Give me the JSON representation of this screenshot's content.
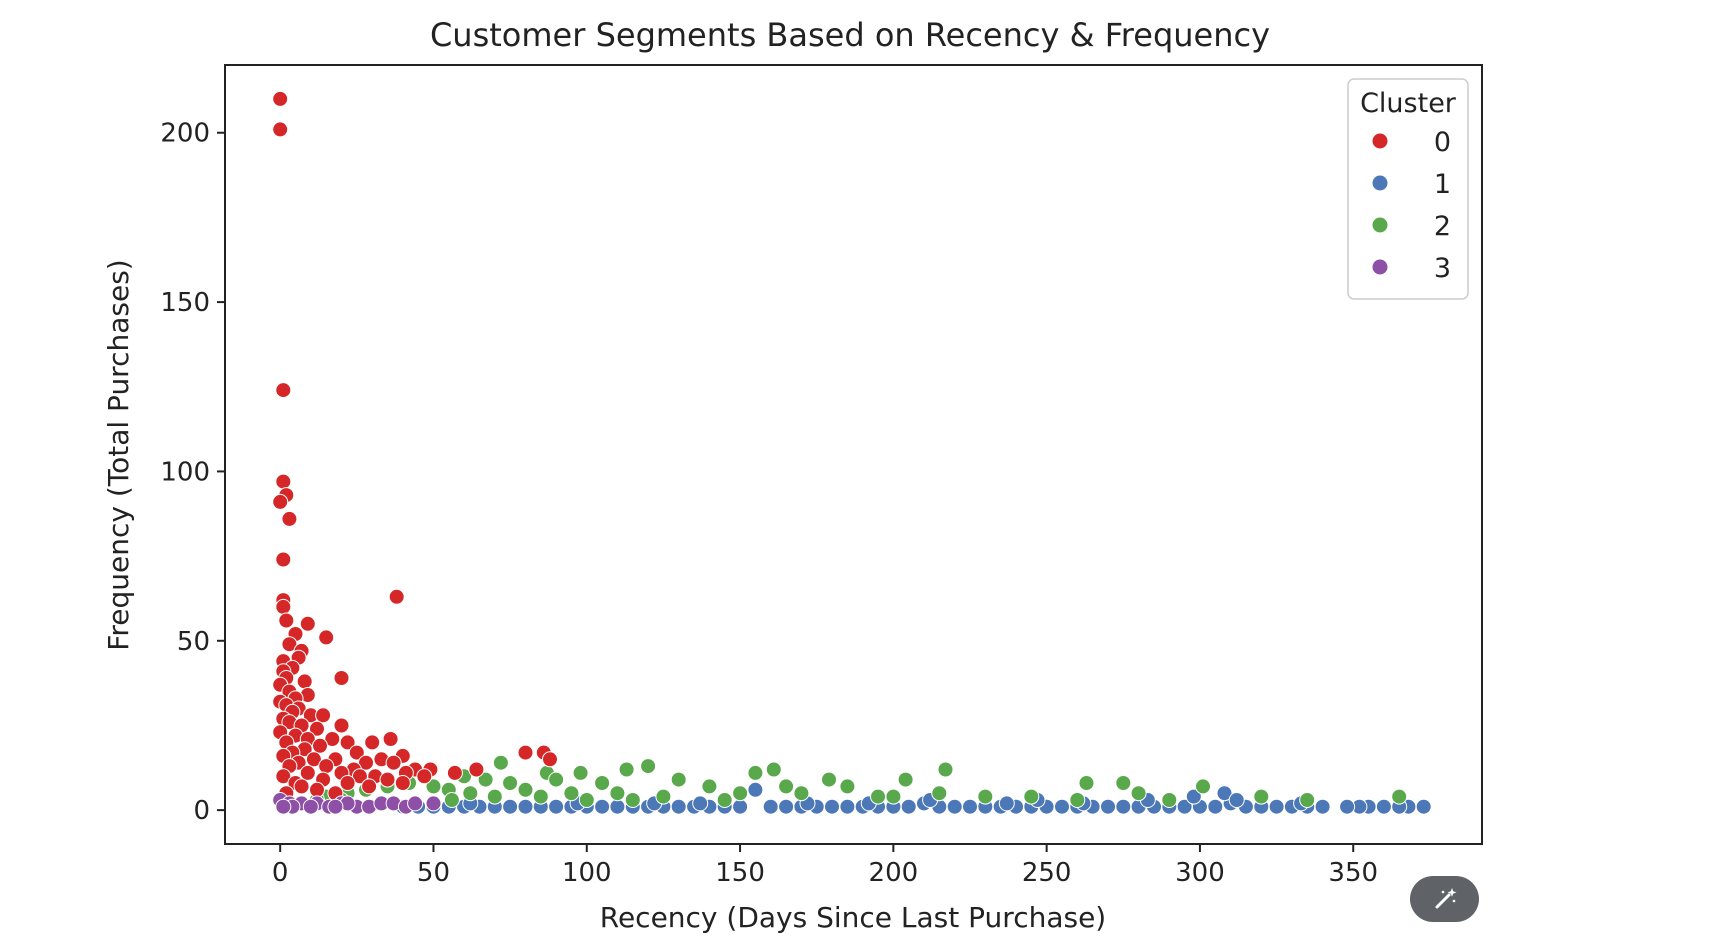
{
  "chart_data": {
    "type": "scatter",
    "title": "Customer Segments Based on Recency & Frequency",
    "xlabel": "Recency (Days Since Last Purchase)",
    "ylabel": "Frequency (Total Purchases)",
    "xlim": [
      -18,
      392
    ],
    "ylim": [
      -10,
      220
    ],
    "xticks": [
      0,
      50,
      100,
      150,
      200,
      250,
      300,
      350
    ],
    "yticks": [
      0,
      50,
      100,
      150,
      200
    ],
    "grid": false,
    "legend": {
      "title": "Cluster",
      "position": "top-right"
    },
    "colors": {
      "0": "#d62728",
      "1": "#4c78b8",
      "2": "#59a84b",
      "3": "#8e4fa6"
    },
    "series": [
      {
        "name": "0",
        "points": [
          [
            0,
            210
          ],
          [
            0,
            201
          ],
          [
            1,
            124
          ],
          [
            1,
            97
          ],
          [
            2,
            93
          ],
          [
            0,
            91
          ],
          [
            3,
            86
          ],
          [
            1,
            74
          ],
          [
            38,
            63
          ],
          [
            1,
            62
          ],
          [
            1,
            60
          ],
          [
            2,
            56
          ],
          [
            9,
            55
          ],
          [
            5,
            52
          ],
          [
            15,
            51
          ],
          [
            3,
            49
          ],
          [
            7,
            47
          ],
          [
            6,
            45
          ],
          [
            1,
            44
          ],
          [
            4,
            42
          ],
          [
            1,
            41
          ],
          [
            2,
            39
          ],
          [
            20,
            39
          ],
          [
            8,
            38
          ],
          [
            0,
            37
          ],
          [
            3,
            35
          ],
          [
            9,
            34
          ],
          [
            5,
            33
          ],
          [
            0,
            32
          ],
          [
            2,
            31
          ],
          [
            6,
            30
          ],
          [
            4,
            29
          ],
          [
            10,
            28
          ],
          [
            14,
            28
          ],
          [
            1,
            27
          ],
          [
            3,
            26
          ],
          [
            7,
            25
          ],
          [
            20,
            25
          ],
          [
            12,
            24
          ],
          [
            0,
            23
          ],
          [
            5,
            22
          ],
          [
            9,
            21
          ],
          [
            36,
            21
          ],
          [
            17,
            21
          ],
          [
            2,
            20
          ],
          [
            30,
            20
          ],
          [
            22,
            20
          ],
          [
            13,
            19
          ],
          [
            8,
            18
          ],
          [
            4,
            17
          ],
          [
            25,
            17
          ],
          [
            40,
            16
          ],
          [
            1,
            16
          ],
          [
            18,
            15
          ],
          [
            11,
            15
          ],
          [
            33,
            15
          ],
          [
            6,
            14
          ],
          [
            28,
            14
          ],
          [
            37,
            14
          ],
          [
            3,
            13
          ],
          [
            15,
            13
          ],
          [
            24,
            12
          ],
          [
            44,
            12
          ],
          [
            49,
            12
          ],
          [
            9,
            11
          ],
          [
            20,
            11
          ],
          [
            41,
            11
          ],
          [
            1,
            10
          ],
          [
            31,
            10
          ],
          [
            26,
            10
          ],
          [
            47,
            10
          ],
          [
            14,
            9
          ],
          [
            35,
            9
          ],
          [
            5,
            8
          ],
          [
            57,
            11
          ],
          [
            64,
            12
          ],
          [
            22,
            8
          ],
          [
            7,
            7
          ],
          [
            40,
            8
          ],
          [
            80,
            17
          ],
          [
            86,
            17
          ],
          [
            88,
            15
          ],
          [
            29,
            7
          ],
          [
            12,
            6
          ],
          [
            2,
            5
          ],
          [
            18,
            5
          ]
        ]
      },
      {
        "name": "1",
        "points": [
          [
            373,
            1
          ],
          [
            368,
            1
          ],
          [
            365,
            1
          ],
          [
            360,
            1
          ],
          [
            355,
            1
          ],
          [
            352,
            1
          ],
          [
            348,
            1
          ],
          [
            340,
            1
          ],
          [
            335,
            1
          ],
          [
            330,
            1
          ],
          [
            325,
            1
          ],
          [
            320,
            1
          ],
          [
            315,
            1
          ],
          [
            310,
            2
          ],
          [
            305,
            1
          ],
          [
            300,
            1
          ],
          [
            295,
            1
          ],
          [
            290,
            1
          ],
          [
            285,
            1
          ],
          [
            280,
            1
          ],
          [
            275,
            1
          ],
          [
            270,
            1
          ],
          [
            265,
            1
          ],
          [
            260,
            1
          ],
          [
            255,
            1
          ],
          [
            250,
            1
          ],
          [
            245,
            1
          ],
          [
            240,
            1
          ],
          [
            235,
            1
          ],
          [
            230,
            1
          ],
          [
            225,
            1
          ],
          [
            220,
            1
          ],
          [
            215,
            1
          ],
          [
            210,
            2
          ],
          [
            205,
            1
          ],
          [
            200,
            1
          ],
          [
            195,
            1
          ],
          [
            190,
            1
          ],
          [
            185,
            1
          ],
          [
            180,
            1
          ],
          [
            175,
            1
          ],
          [
            170,
            1
          ],
          [
            165,
            1
          ],
          [
            160,
            1
          ],
          [
            155,
            6
          ],
          [
            150,
            1
          ],
          [
            145,
            1
          ],
          [
            140,
            1
          ],
          [
            135,
            1
          ],
          [
            130,
            1
          ],
          [
            125,
            1
          ],
          [
            120,
            1
          ],
          [
            115,
            1
          ],
          [
            110,
            1
          ],
          [
            105,
            1
          ],
          [
            100,
            1
          ],
          [
            95,
            1
          ],
          [
            90,
            1
          ],
          [
            85,
            1
          ],
          [
            80,
            1
          ],
          [
            75,
            1
          ],
          [
            70,
            1
          ],
          [
            65,
            1
          ],
          [
            60,
            1
          ],
          [
            55,
            1
          ],
          [
            50,
            1
          ],
          [
            45,
            1
          ],
          [
            40,
            1
          ],
          [
            308,
            5
          ],
          [
            298,
            4
          ],
          [
            283,
            3
          ],
          [
            262,
            2
          ],
          [
            247,
            3
          ],
          [
            237,
            2
          ],
          [
            212,
            3
          ],
          [
            192,
            2
          ],
          [
            172,
            2
          ],
          [
            137,
            2
          ],
          [
            122,
            2
          ],
          [
            97,
            2
          ],
          [
            62,
            2
          ],
          [
            333,
            2
          ],
          [
            312,
            3
          ]
        ]
      },
      {
        "name": "2",
        "points": [
          [
            217,
            12
          ],
          [
            161,
            12
          ],
          [
            155,
            11
          ],
          [
            120,
            13
          ],
          [
            113,
            12
          ],
          [
            98,
            11
          ],
          [
            72,
            14
          ],
          [
            87,
            11
          ],
          [
            179,
            9
          ],
          [
            204,
            9
          ],
          [
            165,
            7
          ],
          [
            263,
            8
          ],
          [
            275,
            8
          ],
          [
            301,
            7
          ],
          [
            60,
            10
          ],
          [
            67,
            9
          ],
          [
            75,
            8
          ],
          [
            90,
            9
          ],
          [
            105,
            8
          ],
          [
            130,
            9
          ],
          [
            140,
            7
          ],
          [
            185,
            7
          ],
          [
            195,
            4
          ],
          [
            215,
            5
          ],
          [
            230,
            4
          ],
          [
            245,
            4
          ],
          [
            280,
            5
          ],
          [
            320,
            4
          ],
          [
            365,
            4
          ],
          [
            50,
            7
          ],
          [
            42,
            8
          ],
          [
            35,
            7
          ],
          [
            28,
            6
          ],
          [
            22,
            5
          ],
          [
            15,
            4
          ],
          [
            12,
            3
          ],
          [
            55,
            6
          ],
          [
            80,
            6
          ],
          [
            95,
            5
          ],
          [
            110,
            5
          ],
          [
            125,
            4
          ],
          [
            150,
            5
          ],
          [
            170,
            5
          ],
          [
            200,
            4
          ],
          [
            56,
            3
          ],
          [
            70,
            4
          ],
          [
            100,
            3
          ],
          [
            145,
            3
          ],
          [
            260,
            3
          ],
          [
            290,
            3
          ],
          [
            335,
            3
          ],
          [
            20,
            3
          ],
          [
            85,
            4
          ],
          [
            115,
            3
          ],
          [
            62,
            5
          ]
        ]
      },
      {
        "name": "3",
        "points": [
          [
            0,
            3
          ],
          [
            3,
            2
          ],
          [
            7,
            2
          ],
          [
            12,
            2
          ],
          [
            16,
            1
          ],
          [
            20,
            2
          ],
          [
            25,
            1
          ],
          [
            29,
            1
          ],
          [
            33,
            2
          ],
          [
            37,
            2
          ],
          [
            41,
            1
          ],
          [
            44,
            2
          ],
          [
            50,
            2
          ],
          [
            10,
            1
          ],
          [
            4,
            1
          ],
          [
            1,
            1
          ],
          [
            22,
            2
          ],
          [
            18,
            1
          ]
        ]
      }
    ]
  },
  "ui": {
    "magic_button_icon": "magic-wand-icon"
  }
}
